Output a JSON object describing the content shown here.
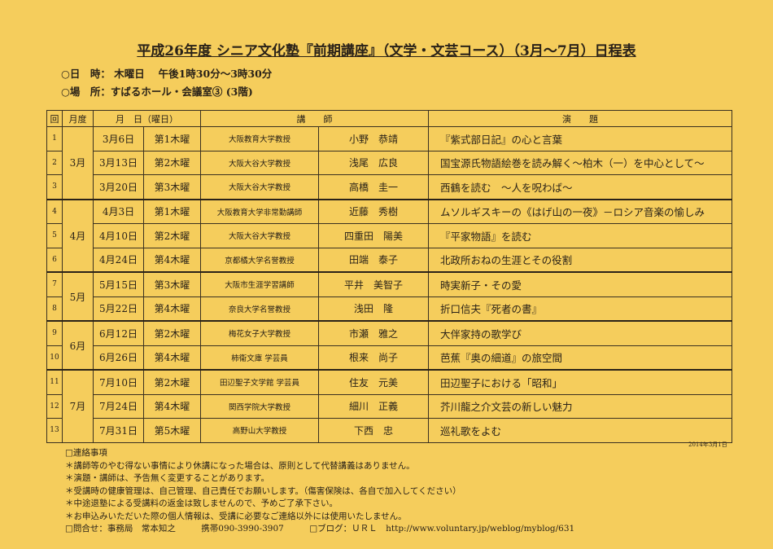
{
  "title": "平成26年度 シニア文化塾『前期講座』（文学・文芸コース）（3月～7月）日程表",
  "schedule": "○日　時： 木曜日　 午後1時30分～3時30分",
  "place": "○場　所：すばるホール・会議室③ (3階)",
  "headers": [
    "回",
    "月度",
    "月　日（曜日）",
    "講　　師",
    "演　　題"
  ],
  "rows": [
    {
      "no": "1",
      "month": "3月",
      "date": "3月6日",
      "wd": "第1木曜",
      "aff": "大阪教育大学教授",
      "name": "小野　恭靖",
      "topic": "『紫式部日記』の心と言葉"
    },
    {
      "no": "2",
      "month": "",
      "date": "3月13日",
      "wd": "第2木曜",
      "aff": "大阪大谷大学教授",
      "name": "浅尾　広良",
      "topic": "国宝源氏物語絵巻を読み解く～柏木（一）を中心として～"
    },
    {
      "no": "3",
      "month": "",
      "date": "3月20日",
      "wd": "第3木曜",
      "aff": "大阪大谷大学教授",
      "name": "高橋　圭一",
      "topic": "西鶴を読む　～人を呪わば～"
    },
    {
      "no": "4",
      "month": "4月",
      "date": "4月3日",
      "wd": "第1木曜",
      "aff": "大阪教育大学非常勤講師",
      "name": "近藤　秀樹",
      "topic": "ムソルギスキーの《はげ山の一夜》－ロシア音楽の愉しみ"
    },
    {
      "no": "5",
      "month": "",
      "date": "4月10日",
      "wd": "第2木曜",
      "aff": "大阪大谷大学教授",
      "name": "四重田　陽美",
      "topic": "『平家物語』を読む"
    },
    {
      "no": "6",
      "month": "",
      "date": "4月24日",
      "wd": "第4木曜",
      "aff": "京都橘大学名誉教授",
      "name": "田端　泰子",
      "topic": "北政所おねの生涯とその役割"
    },
    {
      "no": "7",
      "month": "5月",
      "date": "5月15日",
      "wd": "第3木曜",
      "aff": "大阪市生涯学習講師",
      "name": "平井　美智子",
      "topic": "時実新子・その愛"
    },
    {
      "no": "8",
      "month": "",
      "date": "5月22日",
      "wd": "第4木曜",
      "aff": "奈良大学名誉教授",
      "name": "浅田　隆",
      "topic": "折口信夫『死者の書』"
    },
    {
      "no": "9",
      "month": "6月",
      "date": "6月12日",
      "wd": "第2木曜",
      "aff": "梅花女子大学教授",
      "name": "市瀬　雅之",
      "topic": "大伴家持の歌学び"
    },
    {
      "no": "10",
      "month": "",
      "date": "6月26日",
      "wd": "第4木曜",
      "aff": "柿衞文庫 学芸員",
      "name": "根来　尚子",
      "topic": "芭蕉『奥の細道』の旅空間"
    },
    {
      "no": "11",
      "month": "7月",
      "date": "7月10日",
      "wd": "第2木曜",
      "aff": "田辺聖子文学館 学芸員",
      "name": "住友　元美",
      "topic": "田辺聖子における「昭和」"
    },
    {
      "no": "12",
      "month": "",
      "date": "7月24日",
      "wd": "第4木曜",
      "aff": "関西学院大学教授",
      "name": "細川　正義",
      "topic": "芥川龍之介文芸の新しい魅力"
    },
    {
      "no": "13",
      "month": "",
      "date": "7月31日",
      "wd": "第5木曜",
      "aff": "高野山大学教授",
      "name": "下西　忠",
      "topic": "巡礼歌をよむ"
    }
  ],
  "date": "2014年3月1日",
  "notes": [
    "□連絡事項",
    "＊講師等のやむ得ない事情により休講になった場合は、原則として代替講義はありません。",
    "＊演題・講師は、予告無く変更することがあります。",
    "＊受講時の健康管理は、自己管理、自己責任でお願いします。（傷害保険は、各自で加入してください）",
    "＊中途退塾による受講料の返金は致しませんので、予めご了承下さい。",
    "＊お申込みいただいた際の個人情報は、受講に必要なご連絡以外には使用いたしません。"
  ],
  "contact": {
    "office": "□問合せ：事務局　常本知之",
    "phone": "携帯090-3990-3907",
    "blog": "□ブログ：ＵＲＬ　http://www.voluntary.jp/weblog/myblog/631"
  }
}
